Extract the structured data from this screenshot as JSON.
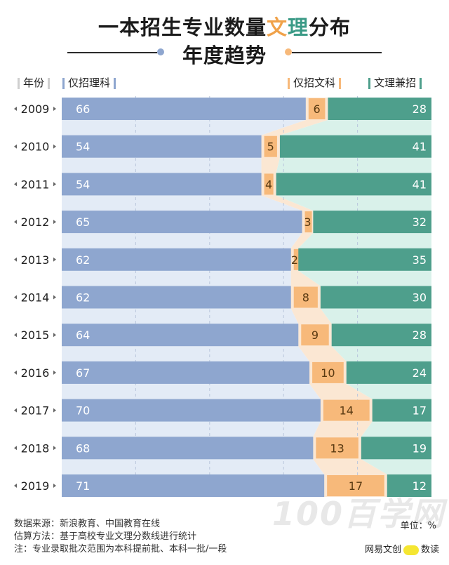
{
  "title": {
    "line1_a": "一本招生专业数量",
    "line1_b": "文",
    "line1_c": "理",
    "line1_d": "分布",
    "line2": "年度趋势"
  },
  "headers": {
    "year": "年份",
    "science": "仅招理科",
    "arts": "仅招文科",
    "both": "文理兼招"
  },
  "colors": {
    "science": "#8ea6cf",
    "science_bg": "#e3ebf6",
    "arts": "#f7b97a",
    "arts_bg": "#fbe7d3",
    "both": "#4e9f8c",
    "both_bg": "#d9f1ea"
  },
  "chart_data": {
    "type": "bar",
    "stacked": true,
    "orientation": "horizontal",
    "unit": "%",
    "categories": [
      "2009",
      "2010",
      "2011",
      "2012",
      "2013",
      "2014",
      "2015",
      "2016",
      "2017",
      "2018",
      "2019"
    ],
    "series": [
      {
        "name": "仅招理科",
        "values": [
          66,
          54,
          54,
          65,
          62,
          62,
          64,
          67,
          70,
          68,
          71
        ]
      },
      {
        "name": "仅招文科",
        "values": [
          6,
          5,
          4,
          3,
          2,
          8,
          9,
          10,
          14,
          13,
          17
        ]
      },
      {
        "name": "文理兼招",
        "values": [
          28,
          41,
          41,
          32,
          35,
          30,
          28,
          24,
          17,
          19,
          12
        ]
      }
    ]
  },
  "footer": {
    "source": "数据来源：新浪教育、中国教育在线",
    "method": "估算方法：基于高校专业文理分数线进行统计",
    "note": "注：专业录取批次范围为本科提前批、本科一批/一段",
    "unit": "单位：%",
    "brand_left": "网易文创",
    "brand_right": "数读",
    "watermark": "100百学网"
  }
}
